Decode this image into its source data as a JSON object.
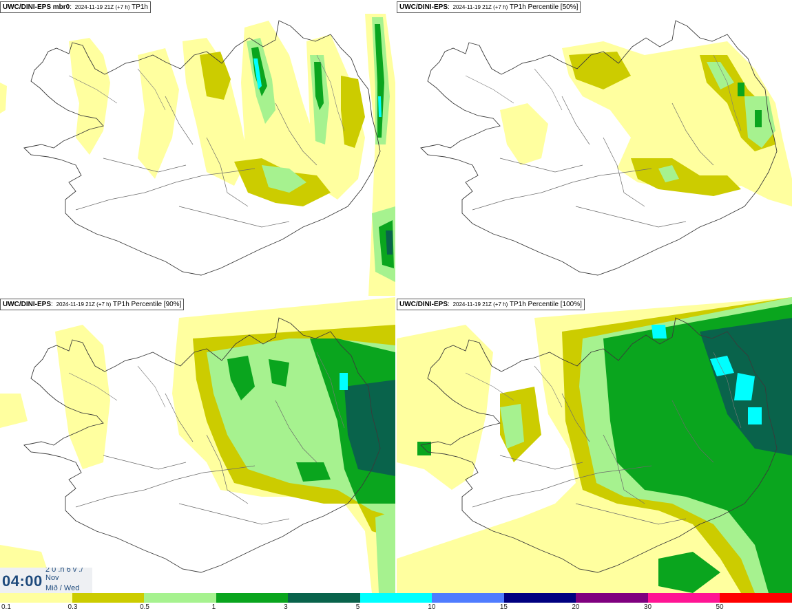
{
  "panels": [
    {
      "id": "tl",
      "model": "UWC/DINI-EPS mbr0",
      "run": "2024-11-19 21Z (+7 h)",
      "field": "TP1h"
    },
    {
      "id": "tr",
      "model": "UWC/DINI-EPS",
      "run": "2024-11-19 21Z (+7 h)",
      "field": "TP1h Percentile [50%]"
    },
    {
      "id": "bl",
      "model": "UWC/DINI-EPS",
      "run": "2024-11-19 21Z (+7 h)",
      "field": "TP1h Percentile [90%]"
    },
    {
      "id": "br",
      "model": "UWC/DINI-EPS",
      "run": "2024-11-19 21Z (+7 h)",
      "field": "TP1h Percentile [100%]"
    }
  ],
  "time": {
    "clock": "04:00",
    "line1": "2 0 .h 6 v ./",
    "line2": "Nov",
    "line3": "Mið / Wed"
  },
  "colorbar": {
    "colors": [
      "#ffff9f",
      "#cccc00",
      "#a6f28f",
      "#0aa51e",
      "#09634b",
      "#00ffff",
      "#4f7cff",
      "#000080",
      "#7f007f",
      "#ff1493",
      "#ff0000"
    ],
    "ticks": [
      "0.1",
      "0.3",
      "0.5",
      "1",
      "3",
      "5",
      "10",
      "15",
      "20",
      "30",
      "50"
    ]
  },
  "palette": {
    "light": "#ffff9f",
    "olive": "#cccc00",
    "lgreen": "#a6f28f",
    "green": "#0aa51e",
    "dgreen": "#09634b",
    "cyan": "#00ffff"
  }
}
